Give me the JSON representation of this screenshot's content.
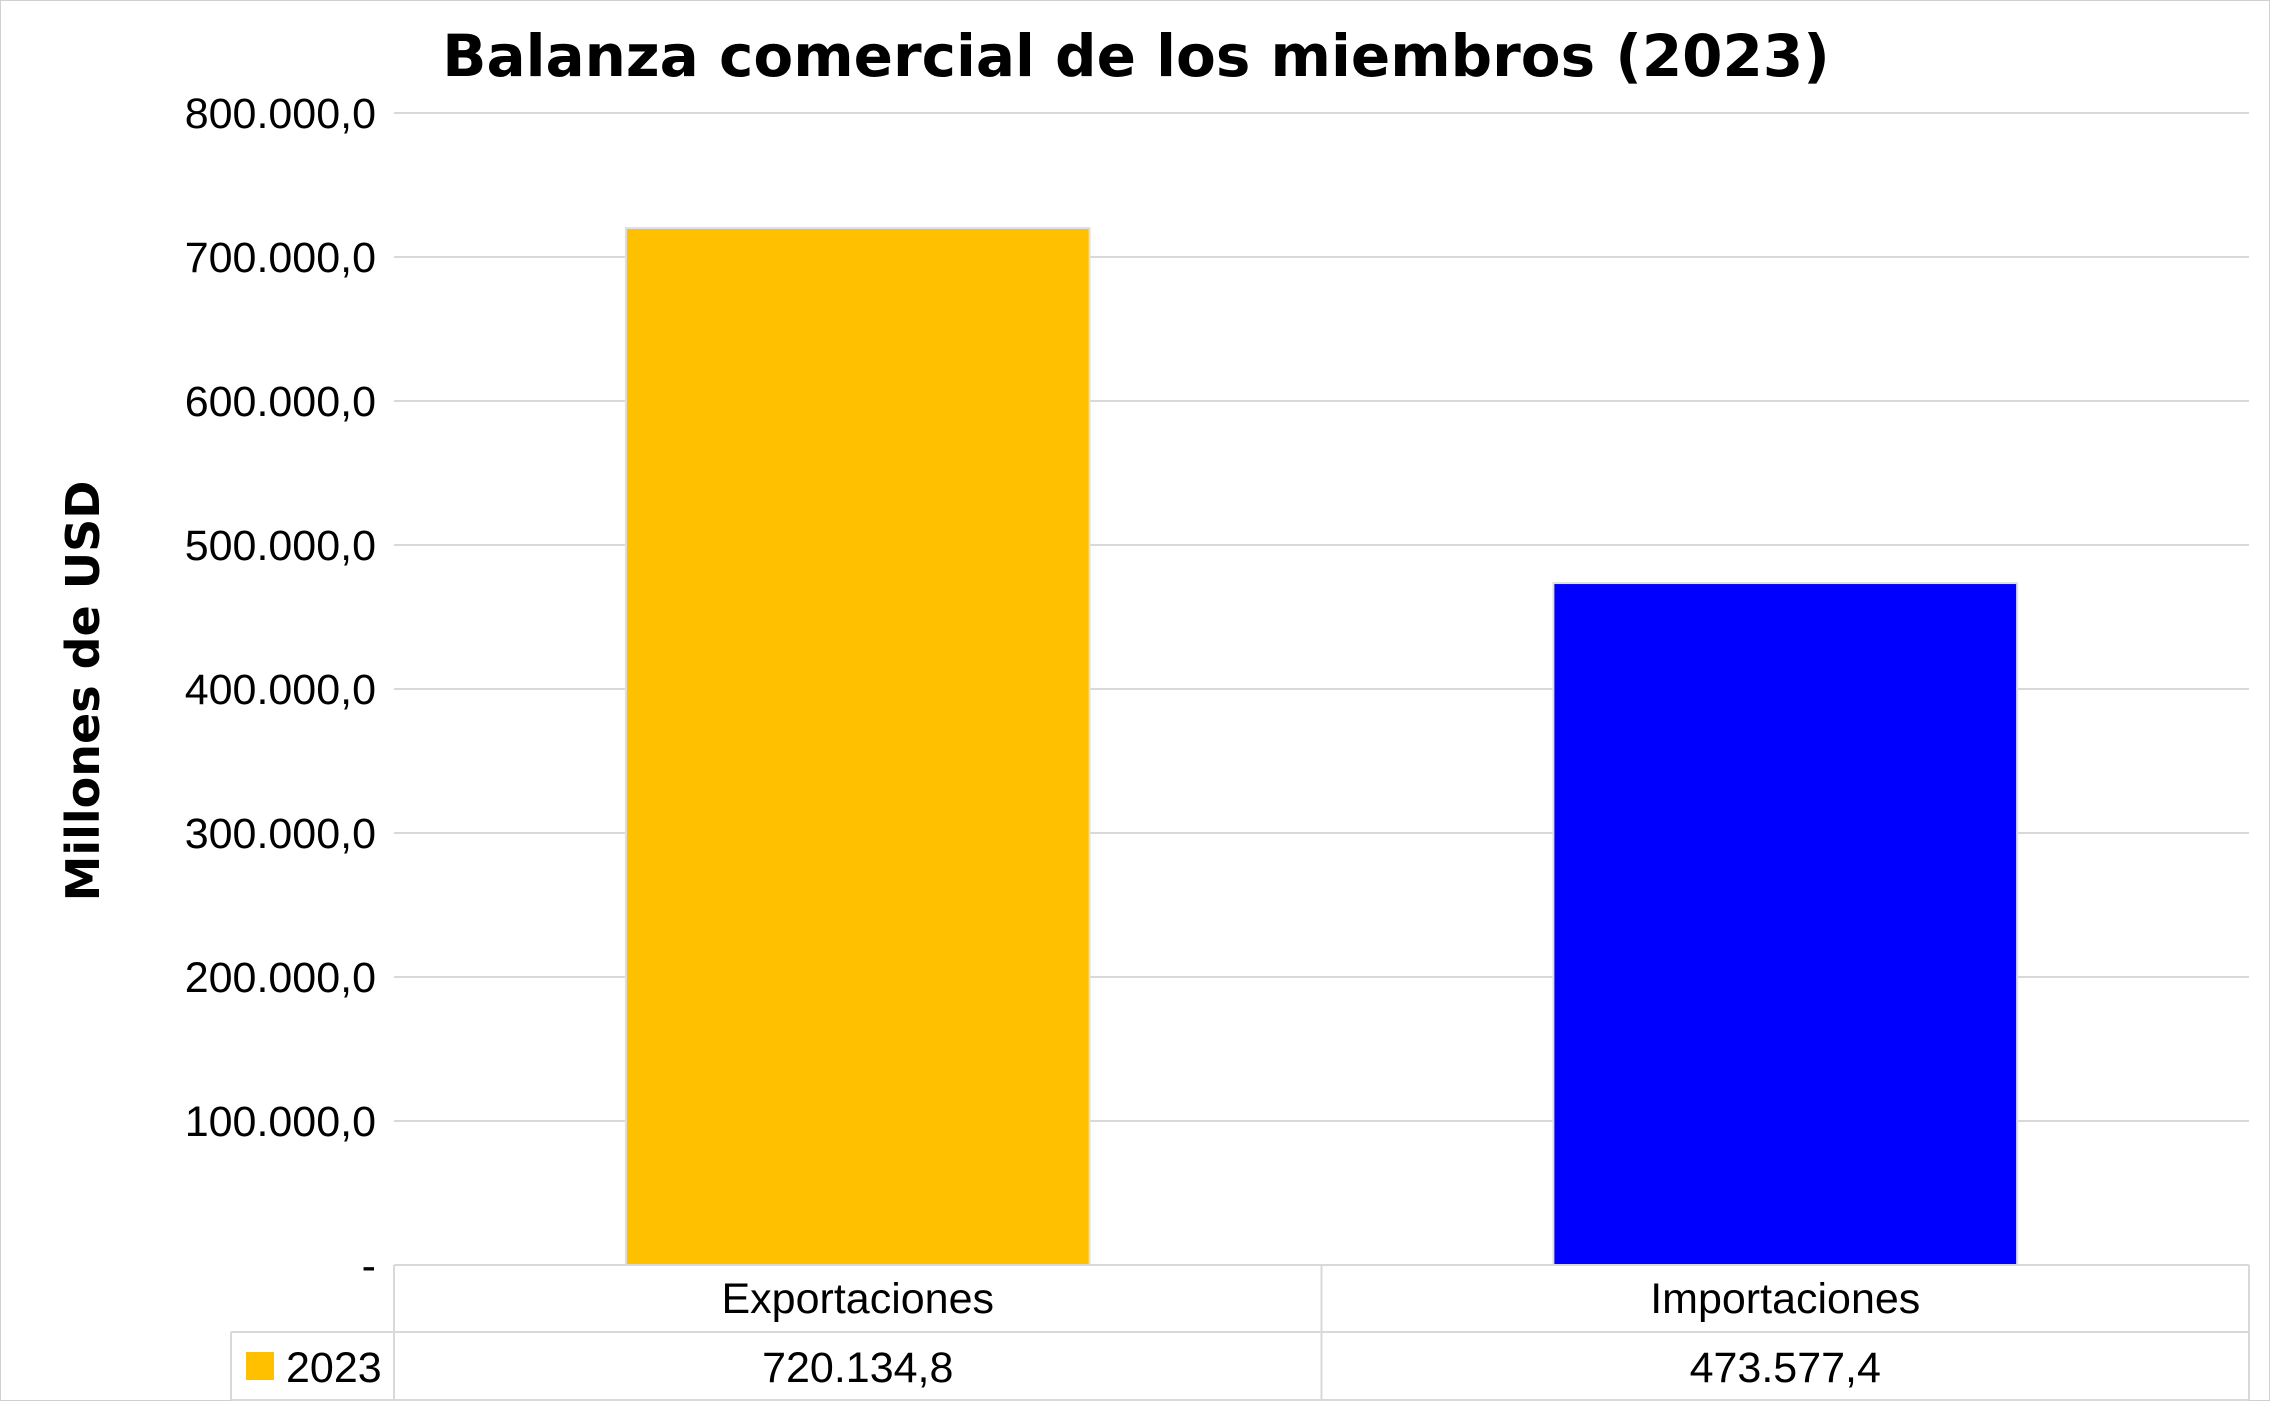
{
  "chart_data": {
    "type": "bar",
    "title": "Balanza comercial de los miembros (2023)",
    "xlabel": "",
    "ylabel": "Millones de USD",
    "ylim": [
      0,
      800000
    ],
    "y_ticks": [
      0,
      100000,
      200000,
      300000,
      400000,
      500000,
      600000,
      700000,
      800000
    ],
    "y_tick_labels": [
      "-",
      "100.000,0",
      "200.000,0",
      "300.000,0",
      "400.000,0",
      "500.000,0",
      "600.000,0",
      "700.000,0",
      "800.000,0"
    ],
    "categories": [
      "Exportaciones",
      "Importaciones"
    ],
    "series": [
      {
        "name": "2023",
        "values": [
          720134.8,
          473577.4
        ],
        "value_labels": [
          "720.134,8",
          "473.577,4"
        ],
        "colors": [
          "#FFC000",
          "#0000FF"
        ]
      }
    ],
    "legend_swatch_color": "#FFC000",
    "grid": true,
    "data_table": true
  }
}
